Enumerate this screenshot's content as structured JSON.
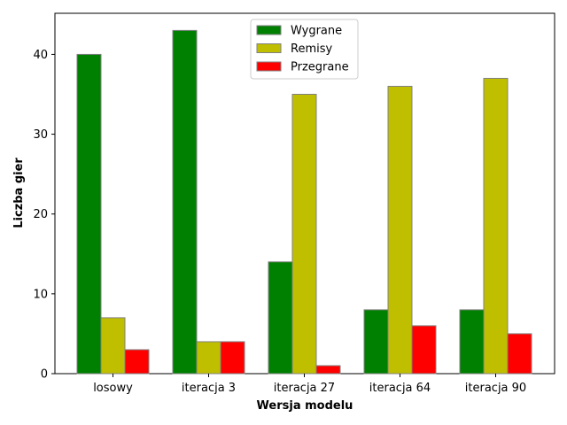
{
  "chart_data": {
    "type": "bar",
    "title": "",
    "xlabel": "Wersja modelu",
    "ylabel": "Liczba gier",
    "categories": [
      "losowy",
      "iteracja 3",
      "iteracja 27",
      "iteracja 64",
      "iteracja 90"
    ],
    "series": [
      {
        "name": "Wygrane",
        "color": "#008000",
        "values": [
          40,
          43,
          14,
          8,
          8
        ]
      },
      {
        "name": "Remisy",
        "color": "#bfbf00",
        "values": [
          7,
          4,
          35,
          36,
          37
        ]
      },
      {
        "name": "Przegrane",
        "color": "#ff0000",
        "values": [
          3,
          4,
          1,
          6,
          5
        ]
      }
    ],
    "ylim": [
      0,
      45.15
    ],
    "yticks": [
      0,
      10,
      20,
      30,
      40
    ],
    "grid": false,
    "legend_position": "top-center"
  }
}
